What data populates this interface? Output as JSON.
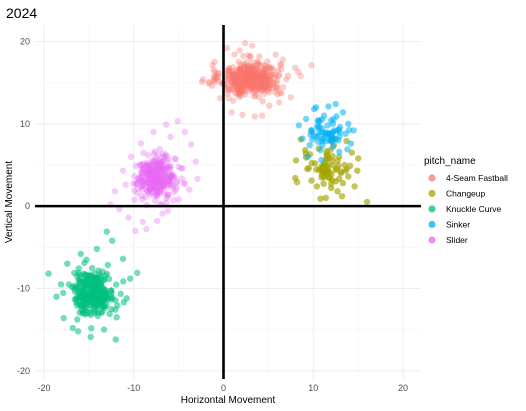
{
  "chart_data": {
    "type": "scatter",
    "title": "2024",
    "xlabel": "Horizontal Movement",
    "ylabel": "Vertical Movement",
    "xlim": [
      -21,
      22
    ],
    "ylim": [
      -21,
      22
    ],
    "xticks": [
      -20,
      -10,
      0,
      10,
      20
    ],
    "yticks": [
      -20,
      -10,
      0,
      10,
      20
    ],
    "grid": true,
    "reference_lines": {
      "x": 0,
      "y": 0
    },
    "legend": {
      "title": "pitch_name",
      "placement": "right"
    },
    "series": [
      {
        "name": "4-Seam Fastball",
        "color": "#F8766D",
        "alpha": 0.35,
        "n": 420,
        "center": [
          3.0,
          15.5
        ],
        "spread": [
          3.0,
          1.9
        ],
        "points": [
          [
            1.8,
            18.9
          ],
          [
            2.4,
            19.8
          ],
          [
            3.2,
            19.5
          ],
          [
            4.0,
            18.2
          ],
          [
            -0.9,
            15.8
          ],
          [
            -1.6,
            14.9
          ],
          [
            -2.3,
            15.4
          ],
          [
            -1.1,
            16.6
          ],
          [
            -0.4,
            13.1
          ],
          [
            0.9,
            11.4
          ],
          [
            2.1,
            11.1
          ],
          [
            3.5,
            10.9
          ],
          [
            5.1,
            12.2
          ],
          [
            6.3,
            13.8
          ],
          [
            7.0,
            15.4
          ],
          [
            8.0,
            16.8
          ],
          [
            7.5,
            13.2
          ],
          [
            9.8,
            17.1
          ],
          [
            6.2,
            12.6
          ],
          [
            4.3,
            11.0
          ],
          [
            -2.4,
            15.1
          ],
          [
            0.4,
            19.2
          ],
          [
            5.8,
            18.4
          ],
          [
            1.5,
            13.6
          ],
          [
            3.9,
            14.2
          ],
          [
            2.7,
            16.9
          ],
          [
            4.6,
            16.1
          ],
          [
            1.9,
            17.2
          ],
          [
            6.6,
            17.8
          ],
          [
            8.6,
            15.8
          ],
          [
            5.5,
            14.9
          ]
        ]
      },
      {
        "name": "Changeup",
        "color": "#A3A500",
        "alpha": 0.65,
        "n": 45,
        "center": [
          11.5,
          4.5
        ],
        "spread": [
          2.3,
          1.8
        ],
        "points": [
          [
            8.0,
            3.4
          ],
          [
            8.2,
            2.9
          ],
          [
            8.6,
            8.1
          ],
          [
            9.1,
            6.8
          ],
          [
            9.5,
            4.6
          ],
          [
            9.8,
            3.1
          ],
          [
            10.2,
            5.2
          ],
          [
            10.4,
            2.4
          ],
          [
            10.6,
            7.0
          ],
          [
            10.9,
            4.8
          ],
          [
            11.2,
            3.5
          ],
          [
            11.4,
            1.0
          ],
          [
            11.6,
            6.2
          ],
          [
            11.8,
            4.1
          ],
          [
            12.0,
            2.2
          ],
          [
            12.1,
            5.5
          ],
          [
            12.3,
            7.4
          ],
          [
            12.5,
            3.0
          ],
          [
            12.7,
            1.8
          ],
          [
            12.9,
            6.0
          ],
          [
            13.1,
            4.2
          ],
          [
            13.3,
            2.8
          ],
          [
            13.5,
            5.0
          ],
          [
            13.7,
            7.9
          ],
          [
            13.9,
            3.6
          ],
          [
            14.1,
            4.9
          ],
          [
            14.3,
            6.5
          ],
          [
            14.6,
            2.4
          ],
          [
            14.9,
            4.3
          ],
          [
            15.0,
            5.8
          ],
          [
            16.0,
            0.5
          ],
          [
            10.8,
            0.9
          ],
          [
            12.4,
            8.2
          ],
          [
            9.2,
            5.9
          ],
          [
            11.9,
            6.8
          ],
          [
            13.2,
            1.2
          ]
        ]
      },
      {
        "name": "Knuckle Curve",
        "color": "#00BF7D",
        "alpha": 0.55,
        "n": 260,
        "center": [
          -14.5,
          -10.5
        ],
        "spread": [
          2.1,
          2.4
        ],
        "points": [
          [
            -19.5,
            -8.2
          ],
          [
            -18.6,
            -11.0
          ],
          [
            -17.8,
            -13.6
          ],
          [
            -16.2,
            -15.2
          ],
          [
            -14.8,
            -15.9
          ],
          [
            -13.3,
            -15.0
          ],
          [
            -11.9,
            -13.5
          ],
          [
            -10.8,
            -11.2
          ],
          [
            -10.4,
            -8.8
          ],
          [
            -11.2,
            -6.4
          ],
          [
            -12.4,
            -4.2
          ],
          [
            -14.1,
            -5.2
          ],
          [
            -15.9,
            -5.8
          ],
          [
            -17.4,
            -7.0
          ],
          [
            -9.6,
            -8.1
          ],
          [
            -13.0,
            -3.1
          ],
          [
            -16.8,
            -14.8
          ],
          [
            -18.1,
            -9.5
          ],
          [
            -12.0,
            -16.2
          ],
          [
            -15.5,
            -6.9
          ]
        ]
      },
      {
        "name": "Sinker",
        "color": "#00B0F6",
        "alpha": 0.55,
        "n": 42,
        "center": [
          11.5,
          9.0
        ],
        "spread": [
          1.6,
          1.6
        ],
        "points": [
          [
            8.4,
            9.8
          ],
          [
            8.8,
            8.2
          ],
          [
            9.2,
            10.6
          ],
          [
            9.6,
            7.4
          ],
          [
            9.9,
            9.0
          ],
          [
            10.1,
            11.8
          ],
          [
            10.4,
            8.4
          ],
          [
            10.6,
            10.2
          ],
          [
            10.8,
            6.8
          ],
          [
            11.0,
            9.4
          ],
          [
            11.2,
            11.0
          ],
          [
            11.4,
            7.9
          ],
          [
            11.6,
            9.8
          ],
          [
            11.8,
            8.6
          ],
          [
            12.0,
            10.4
          ],
          [
            12.2,
            7.2
          ],
          [
            12.4,
            9.2
          ],
          [
            12.6,
            10.9
          ],
          [
            12.8,
            8.0
          ],
          [
            13.0,
            9.6
          ],
          [
            13.3,
            11.4
          ],
          [
            13.6,
            8.8
          ],
          [
            13.9,
            10.0
          ],
          [
            14.2,
            7.6
          ],
          [
            14.5,
            9.2
          ],
          [
            10.3,
            12.0
          ],
          [
            12.9,
            6.6
          ],
          [
            9.4,
            6.0
          ],
          [
            11.7,
            12.1
          ],
          [
            13.8,
            6.9
          ],
          [
            10.9,
            5.6
          ],
          [
            12.5,
            12.4
          ]
        ]
      },
      {
        "name": "Slider",
        "color": "#E76BF3",
        "alpha": 0.35,
        "n": 330,
        "center": [
          -7.5,
          3.5
        ],
        "spread": [
          2.0,
          2.2
        ],
        "points": [
          [
            -12.1,
            1.8
          ],
          [
            -11.6,
            -0.4
          ],
          [
            -10.6,
            -1.4
          ],
          [
            -9.8,
            -3.0
          ],
          [
            -8.6,
            -2.8
          ],
          [
            -7.4,
            -1.8
          ],
          [
            -6.2,
            -0.6
          ],
          [
            -5.0,
            0.8
          ],
          [
            -3.8,
            2.0
          ],
          [
            -2.9,
            3.3
          ],
          [
            -3.1,
            5.4
          ],
          [
            -3.6,
            7.5
          ],
          [
            -4.3,
            9.0
          ],
          [
            -5.1,
            10.3
          ],
          [
            -6.4,
            9.9
          ],
          [
            -7.8,
            9.0
          ],
          [
            -9.2,
            7.6
          ],
          [
            -10.3,
            6.0
          ],
          [
            -11.2,
            4.3
          ],
          [
            -12.6,
            0.2
          ],
          [
            -5.9,
            8.4
          ],
          [
            -6.8,
            -0.9
          ],
          [
            -4.6,
            4.6
          ],
          [
            -9.0,
            -1.9
          ],
          [
            -10.9,
            2.6
          ]
        ]
      }
    ]
  }
}
